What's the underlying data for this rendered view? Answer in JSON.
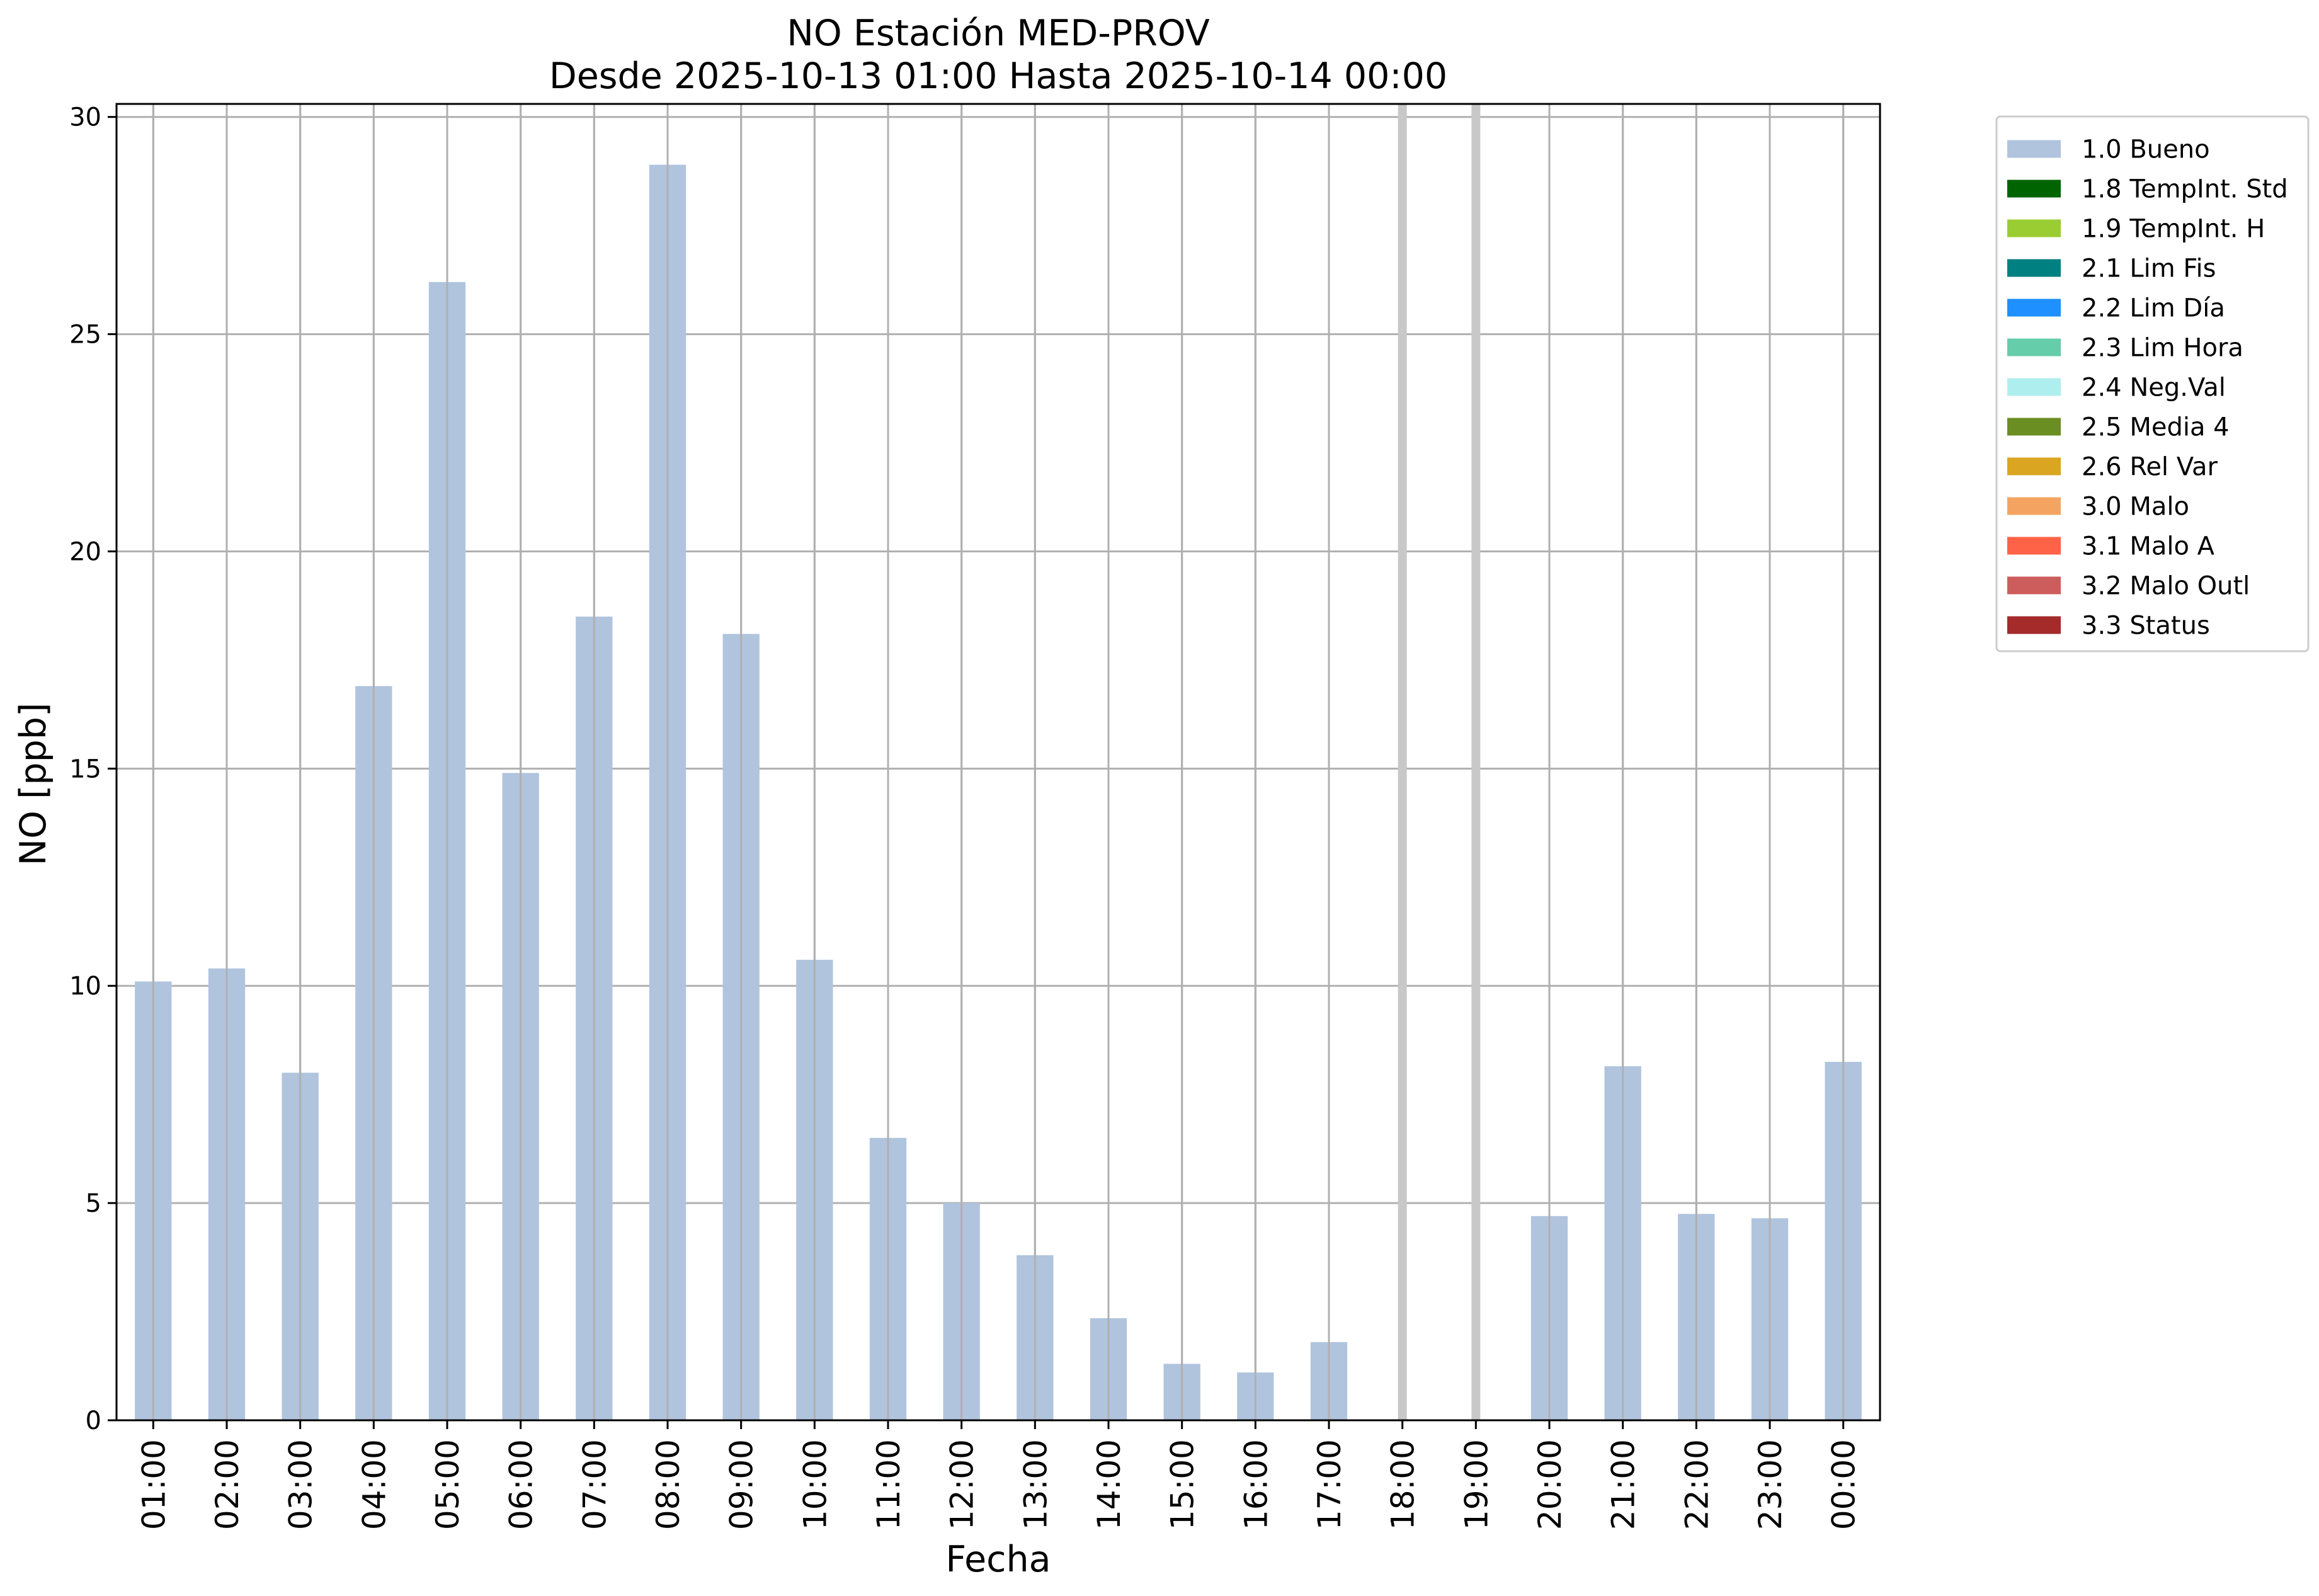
{
  "chart_data": {
    "type": "bar",
    "title": "NO Estación MED-PROV",
    "subtitle": "Desde 2025-10-13 01:00 Hasta 2025-10-14 00:00",
    "xlabel": "Fecha",
    "ylabel": "NO [ppb]",
    "ylim": [
      0,
      30.3
    ],
    "yticks": [
      0,
      5,
      10,
      15,
      20,
      25,
      30
    ],
    "grid": true,
    "legend_position": "outside right, top",
    "categories": [
      "01:00",
      "02:00",
      "03:00",
      "04:00",
      "05:00",
      "06:00",
      "07:00",
      "08:00",
      "09:00",
      "10:00",
      "11:00",
      "12:00",
      "13:00",
      "14:00",
      "15:00",
      "16:00",
      "17:00",
      "18:00",
      "19:00",
      "20:00",
      "21:00",
      "22:00",
      "23:00",
      "00:00"
    ],
    "series": [
      {
        "name": "1.0 Bueno",
        "color": "#b0c4de",
        "values": [
          10.1,
          10.4,
          8.0,
          16.9,
          26.2,
          14.9,
          18.5,
          28.9,
          18.1,
          10.6,
          6.5,
          5.0,
          3.8,
          2.35,
          1.3,
          1.1,
          1.8,
          null,
          null,
          4.7,
          8.15,
          4.75,
          4.65,
          8.25
        ]
      }
    ],
    "missing_markers": [
      "18:00",
      "19:00"
    ],
    "legend": [
      {
        "label": "1.0 Bueno",
        "color": "#b0c4de"
      },
      {
        "label": "1.8 TempInt. Std",
        "color": "#006400"
      },
      {
        "label": "1.9 TempInt. H",
        "color": "#9acd32"
      },
      {
        "label": "2.1 Lim Fis",
        "color": "#008080"
      },
      {
        "label": "2.2 Lim Día",
        "color": "#1e90ff"
      },
      {
        "label": "2.3 Lim Hora",
        "color": "#66cdaa"
      },
      {
        "label": "2.4 Neg.Val",
        "color": "#afeeee"
      },
      {
        "label": "2.5 Media 4",
        "color": "#6b8e23"
      },
      {
        "label": "2.6 Rel Var",
        "color": "#daa520"
      },
      {
        "label": "3.0 Malo",
        "color": "#f4a460"
      },
      {
        "label": "3.1 Malo A",
        "color": "#ff6347"
      },
      {
        "label": "3.2 Malo Outl",
        "color": "#cd5c5c"
      },
      {
        "label": "3.3 Status",
        "color": "#a52a2a"
      }
    ]
  }
}
